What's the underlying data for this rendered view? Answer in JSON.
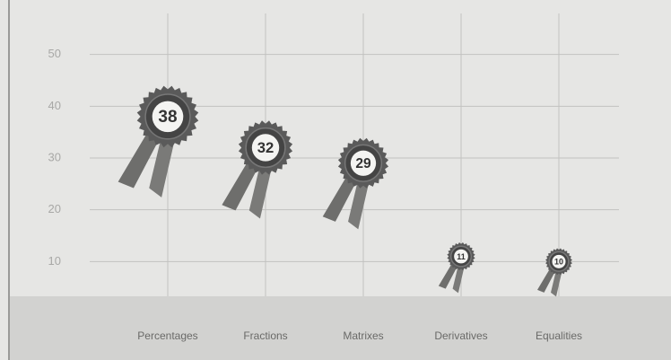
{
  "chart_data": {
    "type": "rosette",
    "categories": [
      "Percentages",
      "Fractions",
      "Matrixes",
      "Derivatives",
      "Equalities"
    ],
    "values": [
      38,
      32,
      29,
      11,
      10
    ],
    "color": "#5a5a5a",
    "ylim": [
      0,
      60
    ],
    "yticks": [
      10,
      20,
      30,
      40,
      50
    ],
    "grid": true
  }
}
